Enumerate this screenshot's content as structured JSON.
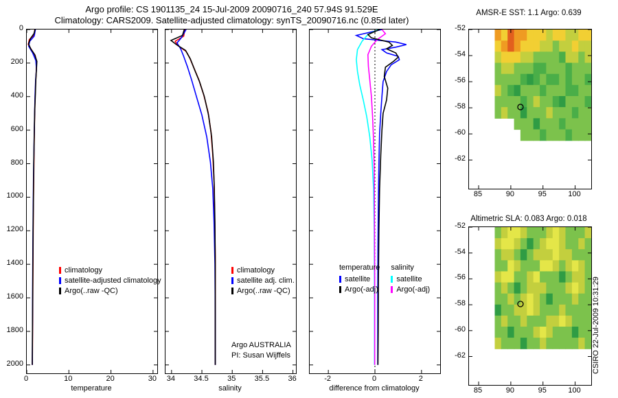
{
  "header": {
    "title_line1": "Argo profile: CS 1901135_24 15-Jul-2009 20090716_240 57.94S 91.529E",
    "title_line2": "Climatology: CARS2009. Satellite-adjusted climatology: synTS_20090716.nc (0.85d later)"
  },
  "watermark": "CSIRO 22-Jul-2009 10:31:29",
  "palette": {
    "R": "#e25f1e",
    "O": "#ef9b22",
    "Y": "#f2cf33",
    "y": "#c3cf3e",
    "g": "#7cc24c",
    "G": "#4aae48",
    "D": "#2f9c44",
    "L": "#e4e648"
  },
  "chart_data": [
    {
      "type": "line",
      "id": "temperature",
      "xlabel": "temperature",
      "xlim": [
        0,
        31
      ],
      "xticks": [
        0,
        10,
        20,
        30
      ],
      "ylim": [
        0,
        2050
      ],
      "yticks": [
        0,
        200,
        400,
        600,
        800,
        1000,
        1200,
        1400,
        1600,
        1800,
        2000
      ],
      "legend": [
        {
          "label": "climatology",
          "color": "#ff0000"
        },
        {
          "label": "satellite-adjusted climatology",
          "color": "#0000ff"
        },
        {
          "label": "Argo(..raw -QC)",
          "color": "#000000"
        }
      ],
      "series": [
        {
          "name": "climatology",
          "color": "#ff0000",
          "points": [
            [
              1.9,
              0
            ],
            [
              1.85,
              30
            ],
            [
              0.6,
              60
            ],
            [
              0.35,
              90
            ],
            [
              1.1,
              120
            ],
            [
              2.0,
              155
            ],
            [
              2.3,
              195
            ],
            [
              2.25,
              250
            ],
            [
              2.1,
              320
            ],
            [
              1.95,
              420
            ],
            [
              1.85,
              550
            ],
            [
              1.75,
              700
            ],
            [
              1.65,
              900
            ],
            [
              1.55,
              1100
            ],
            [
              1.5,
              1300
            ],
            [
              1.45,
              1500
            ],
            [
              1.4,
              1700
            ],
            [
              1.35,
              1900
            ],
            [
              1.32,
              2000
            ]
          ]
        },
        {
          "name": "satellite-adjusted climatology",
          "color": "#0000ff",
          "points": [
            [
              2.05,
              0
            ],
            [
              1.75,
              40
            ],
            [
              0.7,
              70
            ],
            [
              0.45,
              100
            ],
            [
              1.4,
              140
            ],
            [
              2.15,
              185
            ],
            [
              2.3,
              235
            ],
            [
              2.1,
              300
            ],
            [
              1.95,
              400
            ],
            [
              1.85,
              520
            ],
            [
              1.73,
              680
            ],
            [
              1.6,
              880
            ],
            [
              1.52,
              1080
            ],
            [
              1.46,
              1280
            ],
            [
              1.41,
              1480
            ],
            [
              1.37,
              1680
            ],
            [
              1.33,
              1880
            ],
            [
              1.31,
              2000
            ]
          ]
        },
        {
          "name": "Argo(..raw -QC)",
          "color": "#000000",
          "points": [
            [
              1.95,
              0
            ],
            [
              1.7,
              25
            ],
            [
              0.85,
              55
            ],
            [
              0.4,
              85
            ],
            [
              0.95,
              115
            ],
            [
              1.9,
              150
            ],
            [
              2.4,
              190
            ],
            [
              2.3,
              235
            ],
            [
              2.15,
              300
            ],
            [
              2.05,
              380
            ],
            [
              1.9,
              480
            ],
            [
              1.78,
              620
            ],
            [
              1.66,
              800
            ],
            [
              1.58,
              1000
            ],
            [
              1.5,
              1200
            ],
            [
              1.45,
              1400
            ],
            [
              1.4,
              1600
            ],
            [
              1.36,
              1800
            ],
            [
              1.3,
              2000
            ]
          ]
        }
      ]
    },
    {
      "type": "line",
      "id": "salinity",
      "xlabel": "salinity",
      "xlim": [
        33.9,
        36.05
      ],
      "xticks": [
        34,
        34.5,
        35,
        35.5,
        36
      ],
      "ylim": [
        0,
        2050
      ],
      "yticks": [
        0,
        200,
        400,
        600,
        800,
        1000,
        1200,
        1400,
        1600,
        1800,
        2000
      ],
      "legend": [
        {
          "label": "climatology",
          "color": "#ff0000"
        },
        {
          "label": "satellite adj. clim.",
          "color": "#0000ff"
        },
        {
          "label": "Argo(..raw -QC)",
          "color": "#000000"
        }
      ],
      "annotations": [
        "Argo AUSTRALIA",
        "PI: Susan Wijffels"
      ],
      "series": [
        {
          "name": "climatology",
          "color": "#ff0000",
          "points": [
            [
              34.22,
              0
            ],
            [
              34.2,
              40
            ],
            [
              34.06,
              70
            ],
            [
              34.1,
              95
            ],
            [
              34.24,
              130
            ],
            [
              34.3,
              170
            ],
            [
              34.37,
              230
            ],
            [
              34.45,
              300
            ],
            [
              34.53,
              390
            ],
            [
              34.6,
              490
            ],
            [
              34.65,
              610
            ],
            [
              34.68,
              750
            ],
            [
              34.7,
              900
            ],
            [
              34.71,
              1100
            ],
            [
              34.72,
              1350
            ],
            [
              34.72,
              1700
            ],
            [
              34.72,
              2000
            ]
          ]
        },
        {
          "name": "satellite adj. clim.",
          "color": "#0000ff",
          "points": [
            [
              34.24,
              0
            ],
            [
              34.16,
              50
            ],
            [
              34.09,
              80
            ],
            [
              34.15,
              115
            ],
            [
              34.2,
              160
            ],
            [
              34.26,
              220
            ],
            [
              34.33,
              300
            ],
            [
              34.41,
              400
            ],
            [
              34.5,
              510
            ],
            [
              34.58,
              640
            ],
            [
              34.64,
              790
            ],
            [
              34.68,
              950
            ],
            [
              34.7,
              1150
            ],
            [
              34.715,
              1400
            ],
            [
              34.72,
              1700
            ],
            [
              34.72,
              2000
            ]
          ]
        },
        {
          "name": "Argo(..raw -QC)",
          "color": "#000000",
          "points": [
            [
              34.21,
              0
            ],
            [
              34.18,
              35
            ],
            [
              33.99,
              65
            ],
            [
              34.08,
              90
            ],
            [
              34.23,
              125
            ],
            [
              34.31,
              175
            ],
            [
              34.38,
              240
            ],
            [
              34.46,
              310
            ],
            [
              34.54,
              400
            ],
            [
              34.61,
              510
            ],
            [
              34.66,
              640
            ],
            [
              34.69,
              790
            ],
            [
              34.705,
              950
            ],
            [
              34.715,
              1150
            ],
            [
              34.72,
              1400
            ],
            [
              34.72,
              1700
            ],
            [
              34.72,
              2000
            ]
          ]
        }
      ]
    },
    {
      "type": "line",
      "id": "difference",
      "xlabel": "difference from climatology",
      "xlim": [
        -2.8,
        2.8
      ],
      "xticks": [
        -2,
        0,
        2
      ],
      "ylim": [
        0,
        2050
      ],
      "yticks": [
        0,
        200,
        400,
        600,
        800,
        1000,
        1200,
        1400,
        1600,
        1800,
        2000
      ],
      "zero_line": true,
      "legend_groups": [
        {
          "title": "temperature",
          "items": [
            {
              "label": "satellite",
              "color": "#0000ff"
            },
            {
              "label": "Argo(-adj)",
              "color": "#000000"
            }
          ]
        },
        {
          "title": "salinity",
          "items": [
            {
              "label": "satellite",
              "color": "#00ffff"
            },
            {
              "label": "Argo(-adj)",
              "color": "#ff00ff"
            }
          ]
        }
      ],
      "series": [
        {
          "name": "temperature satellite",
          "color": "#0000ff",
          "points": [
            [
              0.3,
              0
            ],
            [
              -0.8,
              35
            ],
            [
              -0.5,
              55
            ],
            [
              0.9,
              75
            ],
            [
              1.35,
              90
            ],
            [
              0.9,
              105
            ],
            [
              0.3,
              120
            ],
            [
              0.5,
              140
            ],
            [
              1.0,
              160
            ],
            [
              1.05,
              180
            ],
            [
              0.7,
              210
            ],
            [
              0.5,
              250
            ],
            [
              0.35,
              310
            ],
            [
              0.3,
              400
            ],
            [
              0.25,
              500
            ],
            [
              0.2,
              620
            ],
            [
              0.17,
              800
            ],
            [
              0.15,
              1000
            ],
            [
              0.13,
              1300
            ],
            [
              0.12,
              1600
            ],
            [
              0.12,
              2000
            ]
          ]
        },
        {
          "name": "salinity satellite",
          "color": "#00ffff",
          "points": [
            [
              0.15,
              0
            ],
            [
              -0.3,
              30
            ],
            [
              -0.55,
              70
            ],
            [
              -0.75,
              120
            ],
            [
              -0.8,
              180
            ],
            [
              -0.75,
              250
            ],
            [
              -0.65,
              330
            ],
            [
              -0.5,
              420
            ],
            [
              -0.35,
              520
            ],
            [
              -0.22,
              640
            ],
            [
              -0.12,
              780
            ],
            [
              -0.06,
              950
            ],
            [
              -0.03,
              1200
            ],
            [
              -0.02,
              1600
            ],
            [
              -0.02,
              2000
            ]
          ]
        },
        {
          "name": "salinity Argo(-adj)",
          "color": "#ff00ff",
          "points": [
            [
              0.3,
              0
            ],
            [
              0.45,
              25
            ],
            [
              0.1,
              60
            ],
            [
              -0.15,
              100
            ],
            [
              -0.3,
              150
            ],
            [
              -0.28,
              220
            ],
            [
              -0.22,
              300
            ],
            [
              -0.15,
              400
            ],
            [
              -0.1,
              520
            ],
            [
              -0.06,
              660
            ],
            [
              -0.03,
              850
            ],
            [
              -0.02,
              1100
            ],
            [
              -0.01,
              1500
            ],
            [
              -0.01,
              2000
            ]
          ]
        },
        {
          "name": "temperature Argo(-adj)",
          "color": "#000000",
          "points": [
            [
              0.2,
              0
            ],
            [
              -0.3,
              30
            ],
            [
              -0.15,
              50
            ],
            [
              0.6,
              75
            ],
            [
              0.75,
              95
            ],
            [
              0.5,
              115
            ],
            [
              0.9,
              140
            ],
            [
              1.0,
              165
            ],
            [
              0.8,
              190
            ],
            [
              0.45,
              225
            ],
            [
              0.4,
              280
            ],
            [
              0.55,
              350
            ],
            [
              0.5,
              420
            ],
            [
              0.35,
              500
            ],
            [
              0.3,
              600
            ],
            [
              0.25,
              750
            ],
            [
              0.2,
              950
            ],
            [
              0.17,
              1200
            ],
            [
              0.15,
              1500
            ],
            [
              0.14,
              1800
            ],
            [
              0.13,
              2000
            ]
          ]
        }
      ]
    },
    {
      "type": "heatmap",
      "id": "sst",
      "title": "AMSR-E SST: 1.1 Argo: 0.639",
      "xlim": [
        83.5,
        102.5
      ],
      "ylim": [
        -52,
        -64.2
      ],
      "xticks": [
        85,
        90,
        95,
        100
      ],
      "yticks": [
        -52,
        -54,
        -56,
        -58,
        -60,
        -62
      ],
      "grid_extent": {
        "lon": [
          87.5,
          102.5
        ],
        "lat_top": -52,
        "lat_bottom": -60.5
      },
      "grid": [
        "OYROOYYYyYYyyYY",
        "YOROYYYyygyyYyy",
        "yYYYyyggggGyygy",
        "gyygggGGgggGggg",
        "ggggGDGgGGgGggG",
        "ygGDgggGgggGGgg",
        "ggggGgyggGDgggG",
        "gyggDgggygggGgg",
        "WWWgggDgggGgggg",
        "WWWWgggGgggGggg"
      ],
      "marker": {
        "lon": 91.5,
        "lat": -57.94
      }
    },
    {
      "type": "heatmap",
      "id": "sla",
      "title": "Altimetric SLA: 0.083 Argo: 0.018",
      "xlim": [
        83.5,
        102.5
      ],
      "ylim": [
        -52,
        -64.2
      ],
      "xticks": [
        85,
        90,
        95,
        100
      ],
      "yticks": [
        -52,
        -54,
        -56,
        -58,
        -60,
        -62
      ],
      "grid_extent": {
        "lon": [
          87.5,
          102.5
        ],
        "lat_top": -52,
        "lat_bottom": -61.4
      },
      "grid": [
        "gyLLygggyLygggy",
        "yLLygDgyLLyggyg",
        "gyygDgyyyLyyggg",
        "ggLygggLLygyLyg",
        "yLLggyLgggDgyyg",
        "gygDgyyygggyLyg",
        "ggygyLygDgggygg",
        "DggyyLygggygggg",
        "gyggygggyyLyggg",
        "ggDgggyLygggDgg",
        "ygggDggygggggyg"
      ],
      "marker": {
        "lon": 91.5,
        "lat": -57.94
      }
    }
  ]
}
